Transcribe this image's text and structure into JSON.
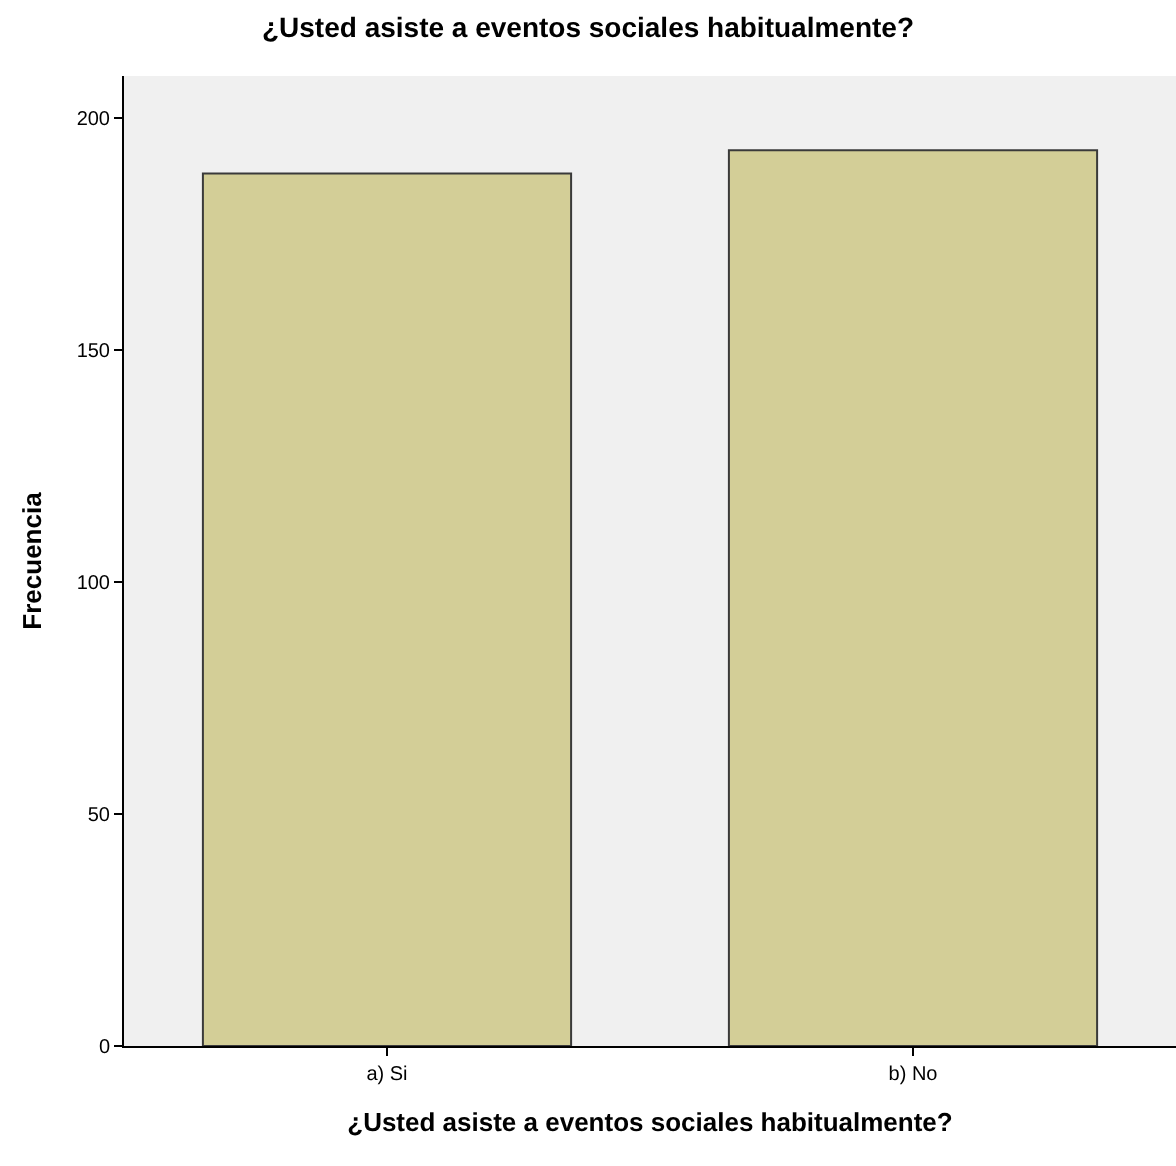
{
  "chart_data": {
    "type": "bar",
    "title": "¿Usted asiste a eventos sociales habitualmente?",
    "xlabel": "¿Usted asiste a eventos sociales habitualmente?",
    "ylabel": "Frecuencia",
    "categories": [
      "a) Si",
      "b) No"
    ],
    "values": [
      188,
      193
    ],
    "color": "#d3ce97",
    "ylim": [
      0,
      209
    ],
    "yticks": [
      0,
      50,
      100,
      150,
      200
    ],
    "grid": false
  }
}
